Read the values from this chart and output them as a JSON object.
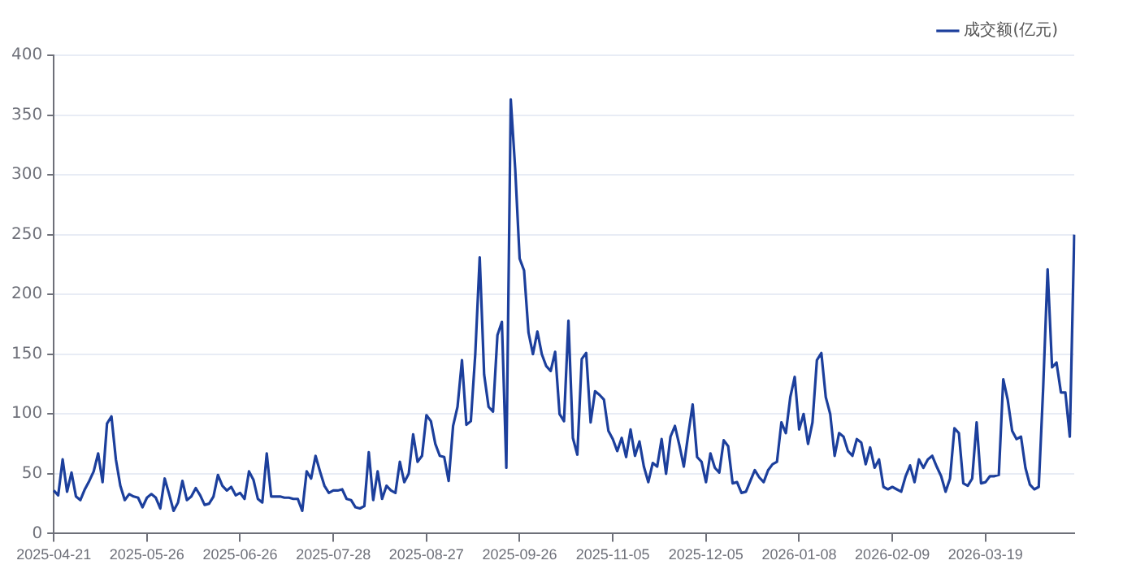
{
  "chart_data": {
    "type": "line",
    "categories": [
      "2025-04-21",
      null,
      null,
      null,
      null,
      null,
      null,
      null,
      null,
      null,
      null,
      null,
      null,
      null,
      null,
      null,
      null,
      null,
      null,
      null,
      null,
      "2025-05-26",
      null,
      null,
      null,
      null,
      null,
      null,
      null,
      null,
      null,
      null,
      null,
      null,
      null,
      null,
      null,
      null,
      null,
      null,
      null,
      null,
      "2025-06-26",
      null,
      null,
      null,
      null,
      null,
      null,
      null,
      null,
      null,
      null,
      null,
      null,
      null,
      null,
      null,
      null,
      null,
      null,
      null,
      null,
      "2025-07-28",
      null,
      null,
      null,
      null,
      null,
      null,
      null,
      null,
      null,
      null,
      null,
      null,
      null,
      null,
      null,
      null,
      null,
      null,
      null,
      null,
      "2025-08-27",
      null,
      null,
      null,
      null,
      null,
      null,
      null,
      null,
      null,
      null,
      null,
      null,
      null,
      null,
      null,
      null,
      null,
      null,
      null,
      null,
      "2025-09-26",
      null,
      null,
      null,
      null,
      null,
      null,
      null,
      null,
      null,
      null,
      null,
      null,
      null,
      null,
      null,
      null,
      null,
      null,
      null,
      null,
      "2025-11-05",
      null,
      null,
      null,
      null,
      null,
      null,
      null,
      null,
      null,
      null,
      null,
      null,
      null,
      null,
      null,
      null,
      null,
      null,
      null,
      null,
      "2025-12-05",
      null,
      null,
      null,
      null,
      null,
      null,
      null,
      null,
      null,
      null,
      null,
      null,
      null,
      null,
      null,
      null,
      null,
      null,
      null,
      null,
      "2026-01-08",
      null,
      null,
      null,
      null,
      null,
      null,
      null,
      null,
      null,
      null,
      null,
      null,
      null,
      null,
      null,
      null,
      null,
      null,
      null,
      null,
      "2026-02-09",
      null,
      null,
      null,
      null,
      null,
      null,
      null,
      null,
      null,
      null,
      null,
      null,
      null,
      null,
      null,
      null,
      null,
      null,
      null,
      null,
      "2026-03-19",
      null,
      null,
      null,
      null,
      null,
      null,
      null,
      null,
      null,
      null,
      null,
      null,
      null,
      null,
      null,
      null,
      null,
      null,
      null,
      null
    ],
    "series": [
      {
        "name": "成交额(亿元)",
        "color": "#1c3f9c",
        "values": [
          36,
          32,
          62,
          35,
          51,
          31,
          28,
          37,
          44,
          52,
          67,
          43,
          92,
          98,
          62,
          40,
          28,
          33,
          31,
          30,
          22,
          30,
          33,
          30,
          21,
          46,
          33,
          19,
          26,
          44,
          28,
          31,
          38,
          32,
          24,
          25,
          31,
          49,
          40,
          36,
          39,
          32,
          34,
          29,
          52,
          45,
          29,
          26,
          67,
          31,
          31,
          31,
          30,
          30,
          29,
          29,
          19,
          52,
          46,
          65,
          52,
          40,
          34,
          36,
          36,
          37,
          29,
          28,
          22,
          21,
          23,
          68,
          28,
          52,
          29,
          40,
          36,
          34,
          60,
          43,
          50,
          83,
          60,
          65,
          99,
          94,
          75,
          65,
          64,
          44,
          90,
          106,
          145,
          91,
          94,
          150,
          231,
          133,
          106,
          102,
          166,
          177,
          55,
          363,
          305,
          230,
          220,
          168,
          150,
          169,
          150,
          140,
          136,
          152,
          100,
          94,
          178,
          80,
          66,
          146,
          151,
          93,
          119,
          116,
          112,
          86,
          79,
          69,
          80,
          64,
          87,
          65,
          77,
          56,
          43,
          59,
          56,
          79,
          50,
          81,
          90,
          74,
          56,
          83,
          108,
          64,
          60,
          43,
          67,
          55,
          51,
          78,
          73,
          42,
          43,
          34,
          35,
          44,
          53,
          47,
          43,
          53,
          58,
          60,
          93,
          84,
          114,
          131,
          87,
          100,
          75,
          93,
          145,
          151,
          114,
          100,
          65,
          84,
          81,
          69,
          65,
          79,
          76,
          58,
          72,
          55,
          62,
          39,
          37,
          39,
          37,
          35,
          48,
          57,
          43,
          62,
          55,
          62,
          65,
          56,
          48,
          35,
          46,
          88,
          84,
          42,
          40,
          46,
          93,
          42,
          43,
          48,
          48,
          49,
          129,
          112,
          86,
          79,
          81,
          55,
          41,
          37,
          39,
          122,
          221,
          139,
          143,
          118,
          118,
          81,
          250
        ]
      }
    ],
    "ylim": [
      0,
      400
    ],
    "yticks": [
      0,
      50,
      100,
      150,
      200,
      250,
      300,
      350,
      400
    ],
    "grid": "y",
    "legend": "top right",
    "marker": "none",
    "line_style": "solid"
  }
}
